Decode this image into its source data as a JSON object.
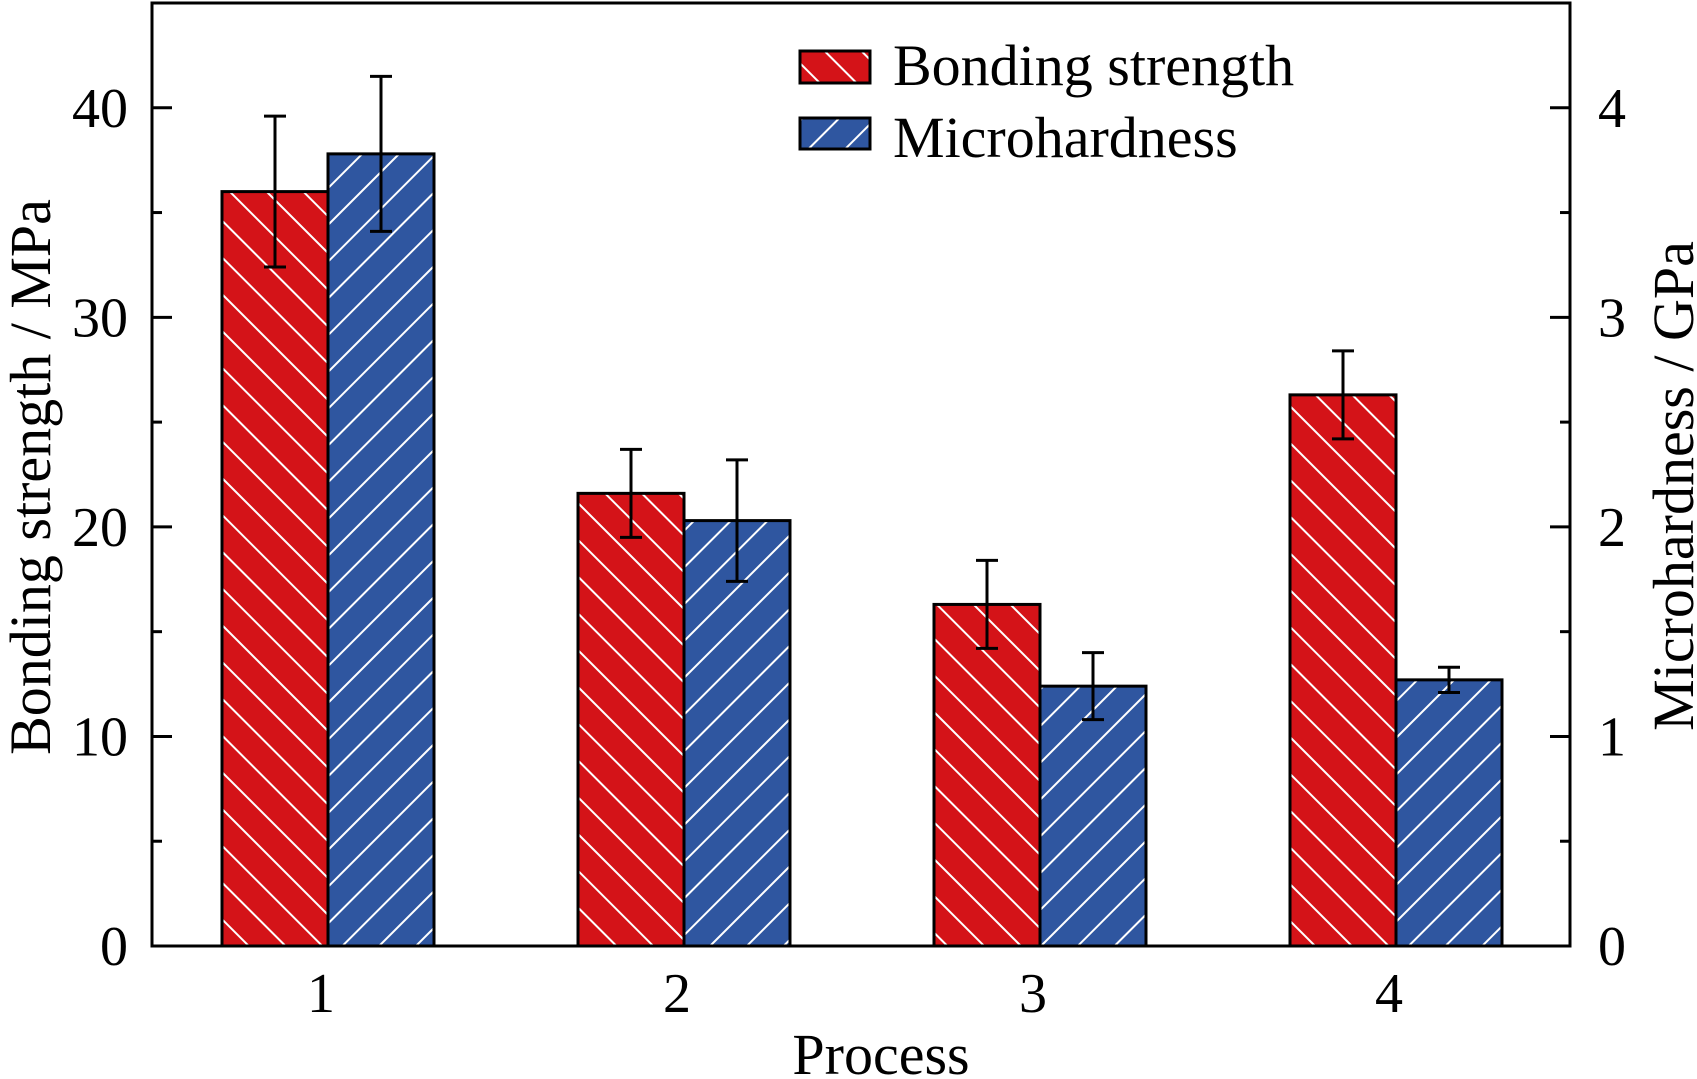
{
  "chart_data": {
    "type": "bar",
    "title": "",
    "xlabel": "Process",
    "ylabel": "Bonding strength / MPa",
    "ylabel_right": "Microhardness / GPa",
    "categories": [
      "1",
      "2",
      "3",
      "4"
    ],
    "ylim": [
      0,
      45
    ],
    "ylim_right": [
      0,
      4.5
    ],
    "yticks": [
      "0",
      "10",
      "20",
      "30",
      "40"
    ],
    "yticks_right": [
      "0",
      "1",
      "2",
      "3",
      "4"
    ],
    "grid": false,
    "legend_position": "top-right",
    "series": [
      {
        "name": "Bonding strength",
        "axis": "left",
        "color": "#D41318",
        "hatch": "forward-diagonal",
        "values": [
          36.0,
          21.6,
          16.3,
          26.3
        ],
        "errors": [
          3.6,
          2.1,
          2.1,
          2.1
        ]
      },
      {
        "name": "Microhardness",
        "axis": "right",
        "color": "#2F56A0",
        "hatch": "back-diagonal",
        "values": [
          3.78,
          2.03,
          1.24,
          1.27
        ],
        "errors": [
          0.37,
          0.29,
          0.16,
          0.06
        ]
      }
    ]
  }
}
